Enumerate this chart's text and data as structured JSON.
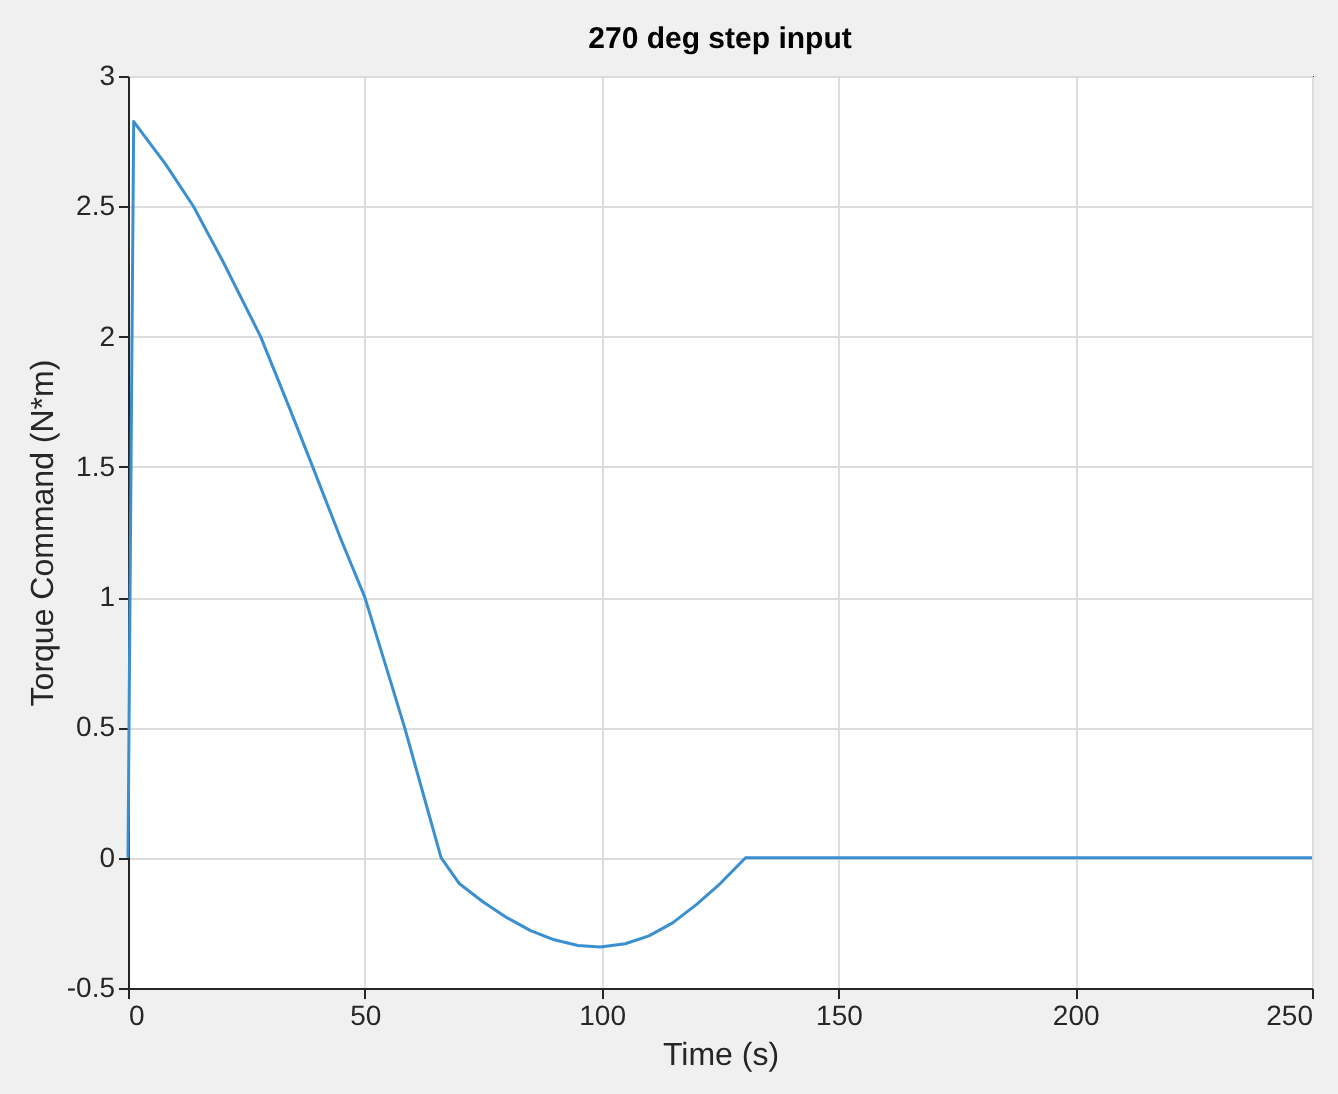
{
  "chart_data": {
    "type": "line",
    "title": "270 deg step input",
    "xlabel": "Time (s)",
    "ylabel": "Torque Command (N*m)",
    "x": [
      0,
      1.2,
      8,
      13.8,
      20,
      28,
      34,
      39,
      45,
      50,
      58.4,
      66.1,
      70,
      75,
      80,
      85,
      90,
      95,
      99.7,
      105,
      110,
      115,
      120,
      125,
      130.4,
      250
    ],
    "series": [
      {
        "color": "#3a8fd0",
        "values": [
          0,
          2.825,
          2.66,
          2.5,
          2.29,
          2.0,
          1.73,
          1.5,
          1.22,
          1.0,
          0.5,
          0,
          -0.1,
          -0.17,
          -0.23,
          -0.28,
          -0.315,
          -0.337,
          -0.343,
          -0.33,
          -0.3,
          -0.25,
          -0.18,
          -0.1,
          0,
          0
        ]
      }
    ],
    "xlim": [
      0,
      250
    ],
    "ylim": [
      -0.5,
      3
    ],
    "xticks": [
      0,
      50,
      100,
      150,
      200,
      250
    ],
    "yticks": [
      -0.5,
      0,
      0.5,
      1,
      1.5,
      2,
      2.5,
      3
    ],
    "grid": true,
    "marker": "none",
    "line_style": "solid"
  }
}
